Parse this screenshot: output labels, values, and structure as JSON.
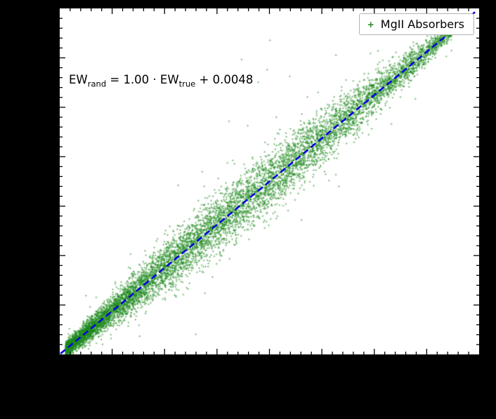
{
  "figure": {
    "background_color": "#000000",
    "plot_background_color": "#ffffff",
    "spine_color": "#000000"
  },
  "legend": {
    "label": "MgII Absorbers",
    "marker": "+",
    "marker_color": "#1f8a1f"
  },
  "annotation": {
    "full_text": "EW_rand = 1.00 · EW_true + 0.0048",
    "ew_left": "EW",
    "sub_left": "rand",
    "middle": " = 1.00 · EW",
    "sub_right": "true",
    "tail": " + 0.0048"
  },
  "chart_data": {
    "type": "scatter",
    "title": "",
    "xlabel": "",
    "ylabel": "",
    "axis_tick_labels_visible": false,
    "series": [
      {
        "name": "MgII Absorbers",
        "marker": "+",
        "color": "#1f8a1f",
        "n_points_approx": 9000,
        "description": "Dense diagonal cloud of small green plus markers following y = x; spread widens toward the middle of the range and density decreases toward the upper right."
      }
    ],
    "fit_line": {
      "slope": 1.0,
      "intercept": 0.0048,
      "equation": "EW_rand = 1.00 * EW_true + 0.0048",
      "style": "dashed",
      "color": "#0000dd",
      "width": 2.5
    },
    "x_norm_range": [
      0,
      1
    ],
    "y_norm_range": [
      0,
      1
    ],
    "scatter_model": {
      "seed": 1337,
      "n": 9000,
      "x_min": 0.015,
      "x_max": 0.94,
      "x_pow": 1.55,
      "sd_base": 0.009,
      "sd_mid": 0.034,
      "outlier_frac": 0.018,
      "outlier_mult": 3.1
    },
    "layout_hints": {
      "legend_position": "upper right",
      "grid": false,
      "tick_direction": "in",
      "x_minor_ticks": 40,
      "x_major_every": 5,
      "y_minor_ticks": 35,
      "y_major_every": 5,
      "minor_tick_len": 4,
      "major_tick_len": 8
    }
  }
}
